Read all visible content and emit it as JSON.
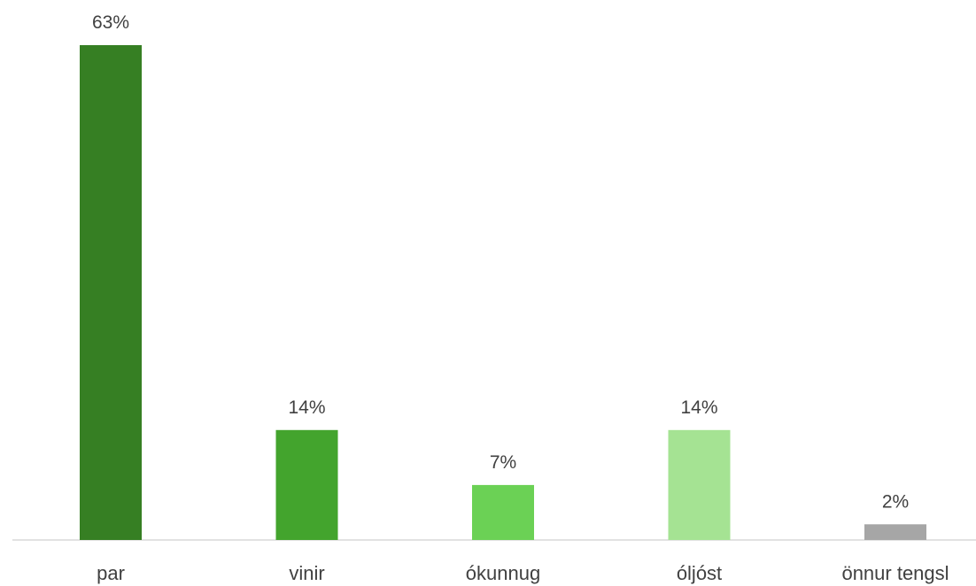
{
  "chart_data": {
    "type": "bar",
    "categories": [
      "par",
      "vinir",
      "ókunnug",
      "óljóst",
      "önnur tengsl"
    ],
    "values": [
      63,
      14,
      7,
      14,
      2
    ],
    "value_labels": [
      "63%",
      "14%",
      "7%",
      "14%",
      "2%"
    ],
    "bar_colors": [
      "#367f23",
      "#43a42d",
      "#6bd155",
      "#a5e393",
      "#a6a6a6"
    ],
    "axis_color": "#d9d9d9",
    "text_color": "#404040",
    "unit": "%",
    "title": "",
    "xlabel": "",
    "ylabel": "",
    "ylim": [
      0,
      63
    ],
    "grid": false,
    "legend": "none"
  }
}
